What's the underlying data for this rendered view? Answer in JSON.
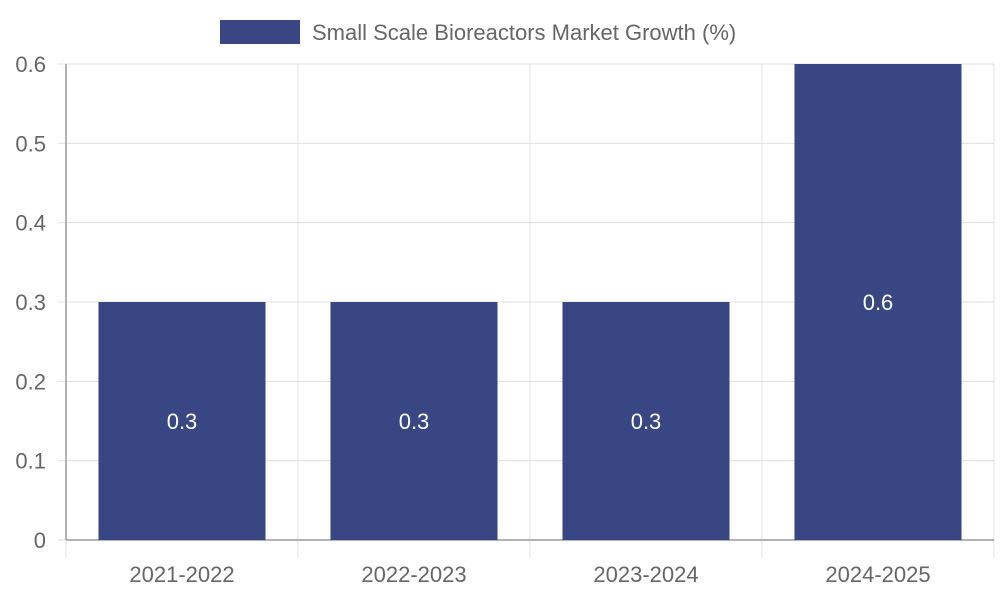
{
  "chart_data": {
    "type": "bar",
    "categories": [
      "2021-2022",
      "2022-2023",
      "2023-2024",
      "2024-2025"
    ],
    "series": [
      {
        "name": "Small Scale Bioreactors Market Growth (%)",
        "values": [
          0.3,
          0.3,
          0.3,
          0.6
        ],
        "color": "#384684"
      }
    ],
    "data_labels": [
      "0.3",
      "0.3",
      "0.3",
      "0.6"
    ],
    "y_ticks": [
      "0",
      "0.1",
      "0.2",
      "0.3",
      "0.4",
      "0.5",
      "0.6"
    ],
    "ylim": [
      0,
      0.6
    ],
    "grid": true,
    "legend_position": "top",
    "colors": {
      "bar": "#384684",
      "grid": "#e0e0e0",
      "axis": "#999999",
      "tick_text": "#666666",
      "data_label": "#ffffff"
    }
  }
}
